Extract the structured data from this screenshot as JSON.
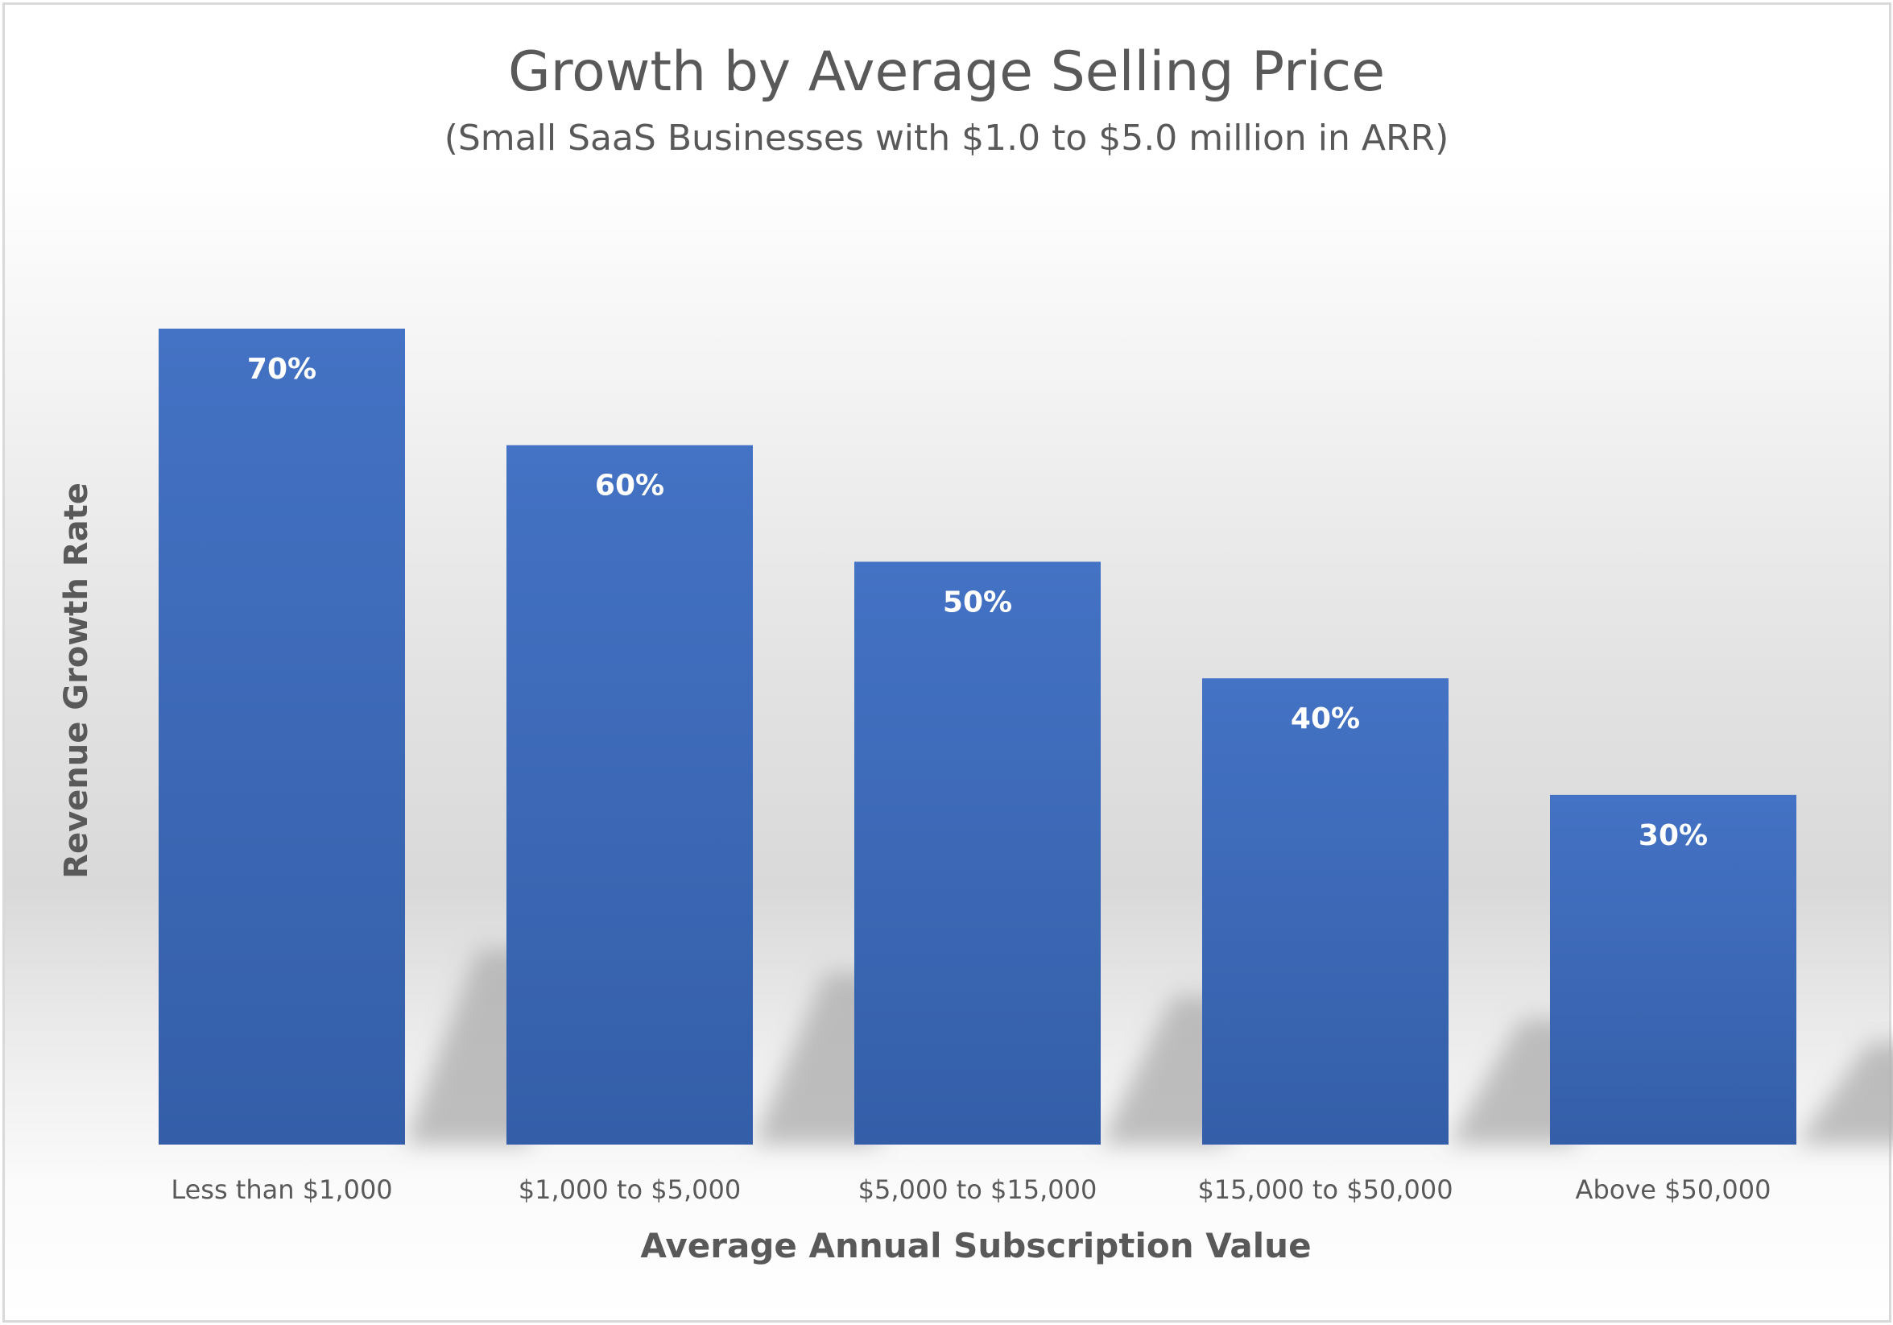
{
  "chart_data": {
    "type": "bar",
    "title": "Growth by Average Selling Price",
    "subtitle": "(Small SaaS Businesses with $1.0 to $5.0 million in ARR)",
    "xlabel": "Average Annual Subscription Value",
    "ylabel": "Revenue Growth Rate",
    "categories": [
      "Less than $1,000",
      "$1,000 to $5,000",
      "$5,000 to $15,000",
      "$15,000 to $50,000",
      "Above $50,000"
    ],
    "values": [
      70,
      60,
      50,
      40,
      30
    ],
    "data_labels": [
      "70%",
      "60%",
      "50%",
      "40%",
      "30%"
    ],
    "ylim": [
      0,
      70
    ],
    "grid": false,
    "legend": "none",
    "bar_color": "#4472c4",
    "text_color": "#595959"
  }
}
